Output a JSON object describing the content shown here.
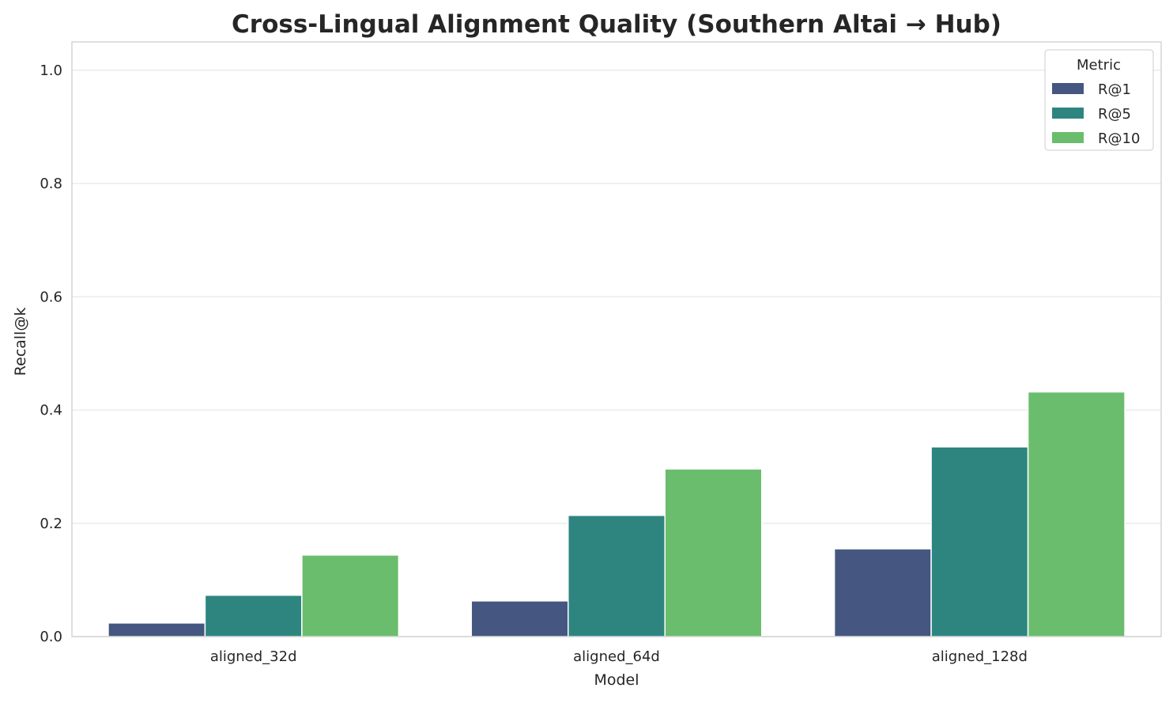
{
  "chart_data": {
    "type": "bar",
    "title": "Cross-Lingual Alignment Quality (Southern Altai → Hub)",
    "xlabel": "Model",
    "ylabel": "Recall@k",
    "categories": [
      "aligned_32d",
      "aligned_64d",
      "aligned_128d"
    ],
    "series": [
      {
        "name": "R@1",
        "color": "#455681",
        "values": [
          0.024,
          0.063,
          0.155
        ]
      },
      {
        "name": "R@5",
        "color": "#2e8580",
        "values": [
          0.073,
          0.214,
          0.335
        ]
      },
      {
        "name": "R@10",
        "color": "#6abd6c",
        "values": [
          0.144,
          0.296,
          0.432
        ]
      }
    ],
    "ylim": [
      0,
      1.05
    ],
    "yticks": [
      "0.0",
      "0.2",
      "0.4",
      "0.6",
      "0.8",
      "1.0"
    ],
    "grid": "horizontal",
    "legend": {
      "title": "Metric",
      "placement": "top-right"
    }
  }
}
